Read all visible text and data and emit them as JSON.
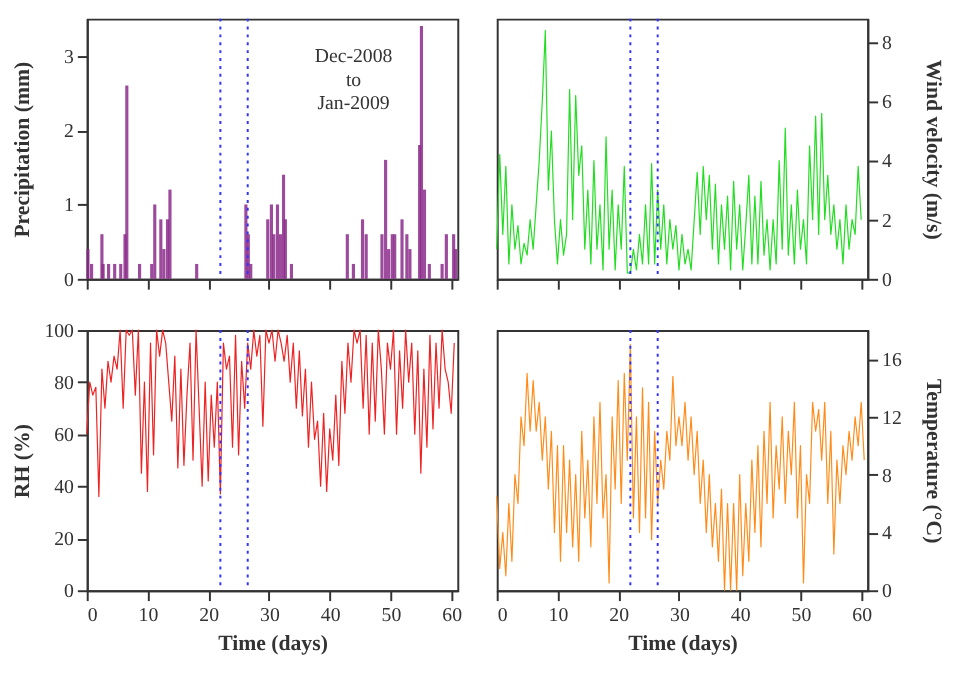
{
  "chart_data": [
    {
      "type": "bar",
      "ylabel": "Precipitation (mm)",
      "xlim": [
        0,
        61
      ],
      "xticks": [
        0,
        10,
        20,
        30,
        40,
        50,
        60
      ],
      "ylim": [
        0,
        3.5
      ],
      "yticks": [
        0,
        1,
        2,
        3
      ],
      "tick_labels": "y",
      "grid": false,
      "annotations": [
        "Dec-2008\nto\nJan-2009"
      ],
      "ref_lines": [
        {
          "axis": "x",
          "value": 22,
          "color": "#3333ff",
          "line_style": "dotted"
        },
        {
          "axis": "x",
          "value": 26.5,
          "color": "#3333ff",
          "line_style": "dotted"
        }
      ],
      "series": [
        {
          "color": "#8b2a8b",
          "x": [
            0.2,
            0.8,
            2.5,
            2.7,
            3.6,
            4.6,
            5.6,
            6.3,
            6.6,
            8.7,
            10.7,
            11.2,
            12.2,
            12.7,
            13.3,
            13.7,
            18.1,
            26.2,
            26.6,
            27,
            29.8,
            30.4,
            30.8,
            31.4,
            31.9,
            32.4,
            32.7,
            33.7,
            42.9,
            43.9,
            45.4,
            46.0,
            48.6,
            49.2,
            49.7,
            50.3,
            50.7,
            51.9,
            52.7,
            53.2,
            54.8,
            55.1,
            55.6,
            56.4,
            58.5,
            59.2,
            60.4,
            60.7
          ],
          "values": [
            0.4,
            0.2,
            0.6,
            0.2,
            0.2,
            0.2,
            0.2,
            0.6,
            2.6,
            0.2,
            0.2,
            1.0,
            0.8,
            0.4,
            0.8,
            1.2,
            0.2,
            1.0,
            0.6,
            0.2,
            0.8,
            1.0,
            0.6,
            1.0,
            0.6,
            1.4,
            0.8,
            0.2,
            0.6,
            0.2,
            0.8,
            0.6,
            0.6,
            1.6,
            0.4,
            0.6,
            0.6,
            0.8,
            0.6,
            0.4,
            1.8,
            3.4,
            1.2,
            0.2,
            0.2,
            0.6,
            0.6,
            0.4
          ]
        }
      ]
    },
    {
      "type": "line",
      "y2label": "Wind velocity (m/s)",
      "xlim": [
        0,
        61
      ],
      "xticks": [
        0,
        10,
        20,
        30,
        40,
        50,
        60
      ],
      "y2lim": [
        0,
        8.8
      ],
      "y2ticks": [
        0,
        2,
        4,
        6,
        8
      ],
      "tick_labels": "y",
      "grid": false,
      "ref_lines": [
        {
          "axis": "x",
          "value": 22,
          "color": "#3333ff",
          "line_style": "dotted"
        },
        {
          "axis": "x",
          "value": 26.5,
          "color": "#3333ff",
          "line_style": "dotted"
        }
      ],
      "series": [
        {
          "color": "#22dd22",
          "axis": "y2",
          "x": [
            0,
            0.5,
            1,
            1.5,
            2,
            2.5,
            3,
            3.5,
            4,
            4.5,
            5,
            5.5,
            6,
            6.5,
            7,
            7.5,
            8,
            8.5,
            9,
            9.5,
            10,
            10.5,
            11,
            11.5,
            12,
            12.5,
            13,
            13.5,
            14,
            14.5,
            15,
            15.5,
            16,
            16.5,
            17,
            17.5,
            18,
            18.5,
            19,
            19.5,
            20,
            20.5,
            21,
            21.5,
            22,
            22.5,
            23,
            23.5,
            24,
            24.5,
            25,
            25.5,
            26,
            26.5,
            27,
            27.5,
            28,
            28.5,
            29,
            29.5,
            30,
            30.5,
            31,
            31.5,
            32,
            33,
            33.5,
            34,
            34.5,
            35,
            35.5,
            36,
            36.5,
            37,
            37.5,
            38,
            38.5,
            39,
            39.5,
            40,
            40.5,
            41,
            41.5,
            42,
            42.5,
            43,
            43.5,
            44,
            44.5,
            45,
            45.5,
            46,
            46.5,
            47,
            47.5,
            48,
            48.5,
            49,
            49.5,
            50,
            50.5,
            51,
            51.5,
            52,
            52.5,
            53,
            53.5,
            54,
            54.5,
            55,
            55.5,
            56,
            56.5,
            57,
            57.5,
            58,
            58.5,
            59,
            59.5,
            60
          ],
          "values": [
            1.0,
            4.2,
            1.5,
            3.8,
            0.5,
            2.5,
            1.0,
            1.8,
            0.5,
            1.2,
            0.8,
            2.0,
            1.0,
            2.5,
            4.0,
            6.0,
            8.4,
            3.0,
            5.0,
            2.0,
            0.5,
            2.0,
            0.8,
            1.5,
            6.4,
            2.0,
            6.2,
            3.5,
            4.5,
            1.0,
            3.0,
            0.5,
            4.0,
            1.0,
            2.5,
            0.3,
            4.8,
            1.0,
            3.0,
            0.3,
            2.5,
            1.0,
            3.8,
            0.2,
            0.2,
            1.0,
            0.3,
            1.5,
            0.5,
            2.5,
            0.5,
            3.9,
            0.5,
            3.0,
            1.0,
            2.5,
            0.5,
            2.0,
            1.0,
            1.8,
            0.3,
            1.5,
            0.5,
            1.0,
            0.3,
            3.6,
            1.5,
            3.8,
            2.0,
            3.5,
            1.0,
            3.2,
            0.5,
            2.5,
            1.0,
            2.8,
            0.3,
            3.3,
            1.0,
            2.5,
            0.3,
            1.8,
            3.5,
            0.5,
            2.8,
            0.5,
            3.3,
            0.8,
            2.0,
            0.3,
            2.0,
            0.5,
            4.0,
            1.0,
            5.1,
            0.8,
            2.5,
            0.5,
            3.0,
            1.0,
            2.0,
            0.5,
            4.5,
            2.0,
            5.5,
            1.5,
            5.6,
            2.0,
            3.5,
            1.5,
            2.5,
            1.0,
            2.0,
            0.5,
            2.5,
            1.0,
            2.0,
            1.5,
            3.8,
            2.0
          ]
        }
      ]
    },
    {
      "type": "line",
      "xlabel": "Time (days)",
      "ylabel": "RH (%)",
      "xlim": [
        0,
        61
      ],
      "xticks": [
        0,
        10,
        20,
        30,
        40,
        50,
        60
      ],
      "ylim": [
        0,
        100
      ],
      "yticks": [
        0,
        20,
        40,
        60,
        80,
        100
      ],
      "grid": false,
      "ref_lines": [
        {
          "axis": "x",
          "value": 22,
          "color": "#3333ff",
          "line_style": "dotted"
        },
        {
          "axis": "x",
          "value": 26.5,
          "color": "#3333ff",
          "line_style": "dotted"
        }
      ],
      "series": [
        {
          "color": "#ee2222",
          "x": [
            0,
            0.5,
            1,
            1.5,
            2,
            2.5,
            3,
            3.5,
            4,
            4.5,
            5,
            5.5,
            6,
            6.5,
            7,
            7.5,
            8,
            8.5,
            9,
            9.5,
            10,
            10.5,
            11,
            11.5,
            12,
            12.5,
            13,
            13.5,
            14,
            14.5,
            15,
            15.5,
            16,
            16.5,
            17,
            17.5,
            18,
            18.5,
            19,
            19.5,
            20,
            20.5,
            21,
            21.5,
            22,
            22.5,
            23,
            23.5,
            24,
            24.5,
            25,
            25.5,
            26,
            26.5,
            27,
            27.5,
            28,
            28.5,
            29,
            29.5,
            30,
            30.5,
            31,
            31.5,
            32,
            32.5,
            33,
            33.5,
            34,
            34.5,
            35,
            35.5,
            36,
            36.5,
            37,
            37.5,
            38,
            38.5,
            39,
            39.5,
            40,
            40.5,
            41,
            41.5,
            42,
            42.5,
            43,
            43.5,
            44,
            44.5,
            45,
            45.5,
            46,
            46.5,
            47,
            47.5,
            48,
            48.5,
            49,
            49.5,
            50,
            50.5,
            51,
            51.5,
            52,
            52.5,
            53,
            53.5,
            54,
            54.5,
            55,
            55.5,
            56,
            56.5,
            57,
            57.5,
            58,
            58.5,
            59,
            59.5,
            60,
            60.5
          ],
          "values": [
            60,
            80,
            75,
            78,
            36,
            85,
            70,
            88,
            80,
            90,
            85,
            100,
            70,
            100,
            98,
            100,
            75,
            100,
            45,
            80,
            38,
            95,
            52,
            100,
            90,
            100,
            95,
            80,
            65,
            90,
            47,
            85,
            48,
            75,
            95,
            50,
            100,
            70,
            40,
            80,
            42,
            75,
            55,
            80,
            37,
            95,
            85,
            90,
            55,
            98,
            52,
            88,
            70,
            95,
            85,
            100,
            90,
            98,
            63,
            100,
            95,
            100,
            88,
            100,
            95,
            88,
            98,
            80,
            95,
            70,
            92,
            67,
            85,
            55,
            80,
            58,
            65,
            40,
            68,
            38,
            62,
            50,
            75,
            48,
            88,
            68,
            95,
            80,
            100,
            95,
            100,
            70,
            98,
            60,
            95,
            65,
            100,
            85,
            60,
            95,
            85,
            100,
            60,
            92,
            70,
            100,
            80,
            95,
            60,
            92,
            45,
            85,
            55,
            98,
            62,
            95,
            70,
            100,
            85,
            80,
            68,
            95
          ]
        }
      ]
    },
    {
      "type": "line",
      "xlabel": "Time (days)",
      "y2label": "Temperature (°C)",
      "xlim": [
        0,
        61
      ],
      "xticks": [
        0,
        10,
        20,
        30,
        40,
        50,
        60
      ],
      "y2lim": [
        0,
        18
      ],
      "y2ticks": [
        0,
        4,
        8,
        12,
        16
      ],
      "grid": false,
      "ref_lines": [
        {
          "axis": "x",
          "value": 22,
          "color": "#3333ff",
          "line_style": "dotted"
        },
        {
          "axis": "x",
          "value": 26.5,
          "color": "#3333ff",
          "line_style": "dotted"
        }
      ],
      "series": [
        {
          "color": "#ff8c1a",
          "axis": "y2",
          "x": [
            0,
            0.5,
            1,
            1.5,
            2,
            2.5,
            3,
            3.5,
            4,
            4.5,
            5,
            5.5,
            6,
            6.5,
            7,
            7.5,
            8,
            8.5,
            9,
            9.5,
            10,
            10.5,
            11,
            11.5,
            12,
            12.5,
            13,
            13.5,
            14,
            14.5,
            15,
            15.5,
            16,
            16.5,
            17,
            17.5,
            18,
            18.5,
            19,
            19.5,
            20,
            20.5,
            21,
            21.5,
            22,
            22.5,
            23,
            23.5,
            24,
            24.5,
            25,
            25.5,
            26,
            26.5,
            27,
            27.5,
            28,
            28.5,
            29,
            29.5,
            30,
            30.5,
            31,
            31.5,
            32,
            32.5,
            33,
            33.5,
            34,
            34.5,
            35,
            35.5,
            36,
            36.5,
            37,
            37.5,
            38,
            38.5,
            39,
            39.5,
            40,
            40.5,
            41,
            41.5,
            42,
            42.5,
            43,
            43.5,
            44,
            44.5,
            45,
            45.5,
            46,
            46.5,
            47,
            47.5,
            48,
            48.5,
            49,
            49.5,
            50,
            50.5,
            51,
            51.5,
            52,
            52.5,
            53,
            53.5,
            54,
            54.5,
            55,
            55.5,
            56,
            56.5,
            57,
            57.5,
            58,
            58.5,
            59,
            59.5,
            60,
            60.5
          ],
          "values": [
            6.5,
            1.5,
            4,
            1,
            6,
            2,
            8,
            6,
            12,
            10,
            15,
            11,
            14.5,
            11,
            13,
            9,
            12,
            7,
            11,
            4,
            10,
            2,
            10,
            4,
            9,
            3,
            8,
            2,
            11,
            5,
            9,
            3,
            12,
            6,
            13,
            5,
            8,
            0.5,
            12,
            7,
            14.5,
            6,
            15,
            9,
            17,
            5,
            12,
            4,
            14,
            5,
            13,
            3.5,
            11,
            6,
            9,
            7,
            11,
            9,
            14.8,
            10,
            12,
            10,
            13,
            9,
            12,
            8,
            11,
            6,
            9,
            4,
            8,
            3,
            6,
            2,
            7,
            0,
            6,
            0,
            6,
            0,
            8,
            1,
            6,
            2,
            9,
            4,
            10,
            3,
            11,
            6,
            13,
            5,
            10,
            7,
            12,
            6,
            11,
            8,
            13,
            5,
            10,
            0.5,
            8,
            6,
            13,
            11,
            12.5,
            9,
            13,
            6,
            11,
            2.5,
            9,
            6,
            10,
            8,
            11,
            9,
            12,
            10,
            13,
            9
          ]
        }
      ]
    }
  ]
}
